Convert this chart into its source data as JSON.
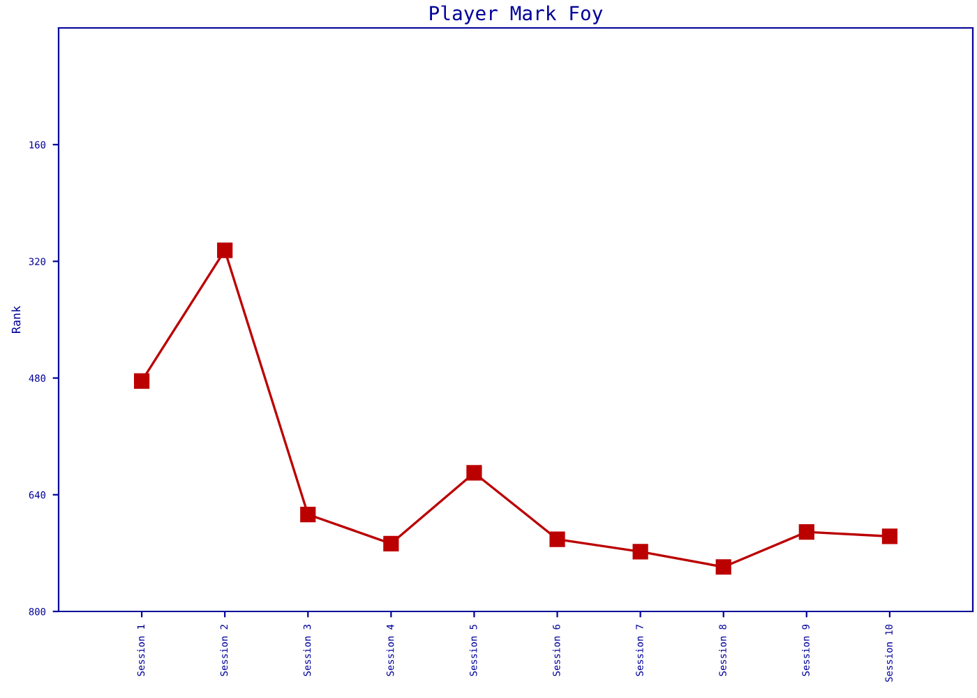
{
  "chart_data": {
    "type": "line",
    "title": "Player Mark Foy",
    "ylabel": "Rank",
    "categories": [
      "Session 1",
      "Session 2",
      "Session 3",
      "Session 4",
      "Session 5",
      "Session 6",
      "Session 7",
      "Session 8",
      "Session 9",
      "Session 10"
    ],
    "series": [
      {
        "color": "#bb0000",
        "values": [
          484,
          305,
          667,
          707,
          610,
          701,
          718,
          739,
          691,
          697
        ]
      }
    ],
    "ylim": [
      800,
      0
    ],
    "yticks": [
      160,
      320,
      480,
      640,
      800
    ],
    "marker": "square",
    "line_style": "solid",
    "grid": false,
    "legend": false
  }
}
